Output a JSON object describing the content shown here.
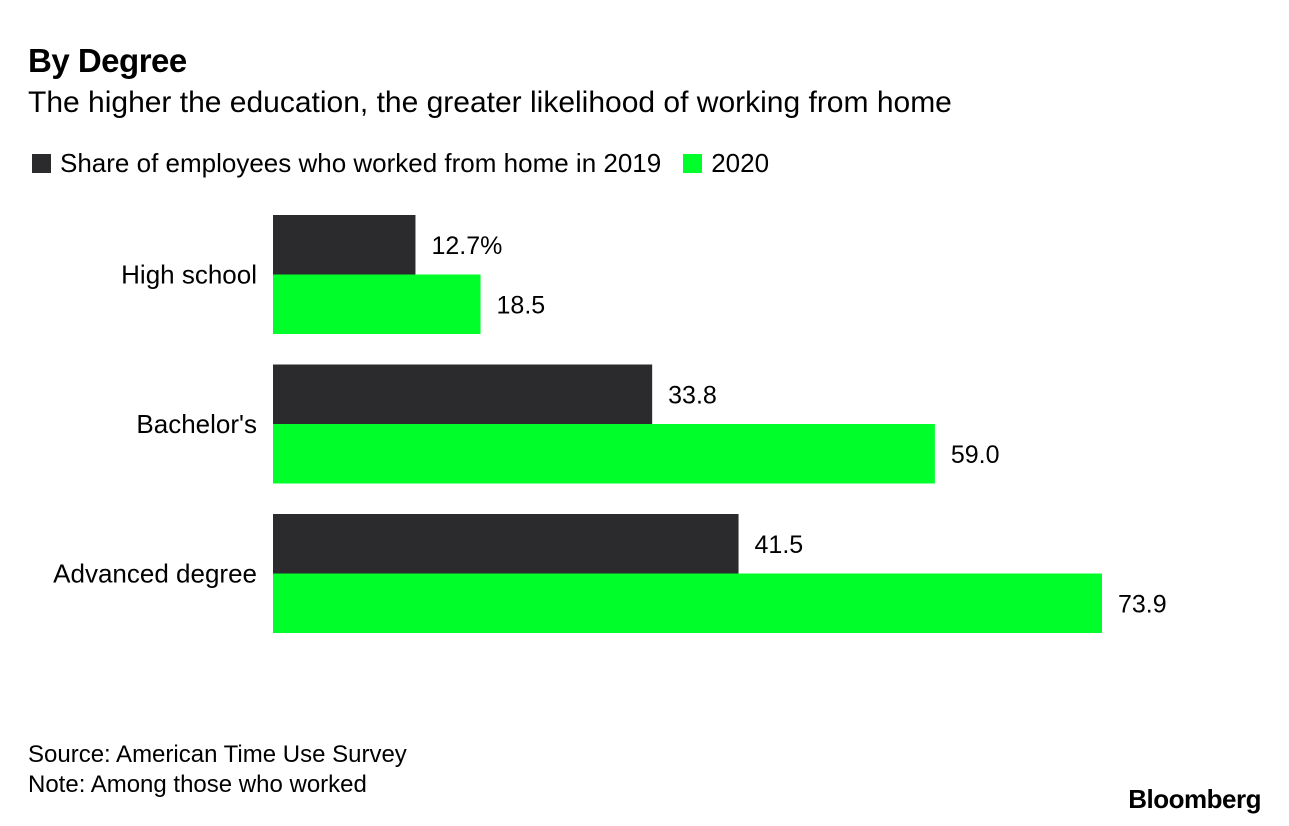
{
  "title": "By Degree",
  "subtitle": "The higher the education, the greater likelihood of working from home",
  "legend": [
    {
      "label": "Share of employees who worked from home in 2019",
      "color": "#2b2b2d"
    },
    {
      "label": "2020",
      "color": "#00ff2a"
    }
  ],
  "chart_data": {
    "type": "bar",
    "orientation": "horizontal",
    "categories": [
      "High school",
      "Bachelor's",
      "Advanced degree"
    ],
    "series": [
      {
        "name": "Share of employees who worked from home in 2019",
        "values": [
          12.7,
          33.8,
          41.5
        ],
        "labels": [
          "12.7%",
          "33.8",
          "41.5"
        ],
        "color": "#2b2b2d"
      },
      {
        "name": "2020",
        "values": [
          18.5,
          59.0,
          73.9
        ],
        "labels": [
          "18.5",
          "59.0",
          "73.9"
        ],
        "color": "#00ff2a"
      }
    ],
    "xlim": [
      0,
      73.9
    ],
    "grid": false,
    "legend_position": "top-left"
  },
  "footer": {
    "source": "Source: American Time Use Survey",
    "note": "Note: Among those who worked"
  },
  "brand": "Bloomberg"
}
